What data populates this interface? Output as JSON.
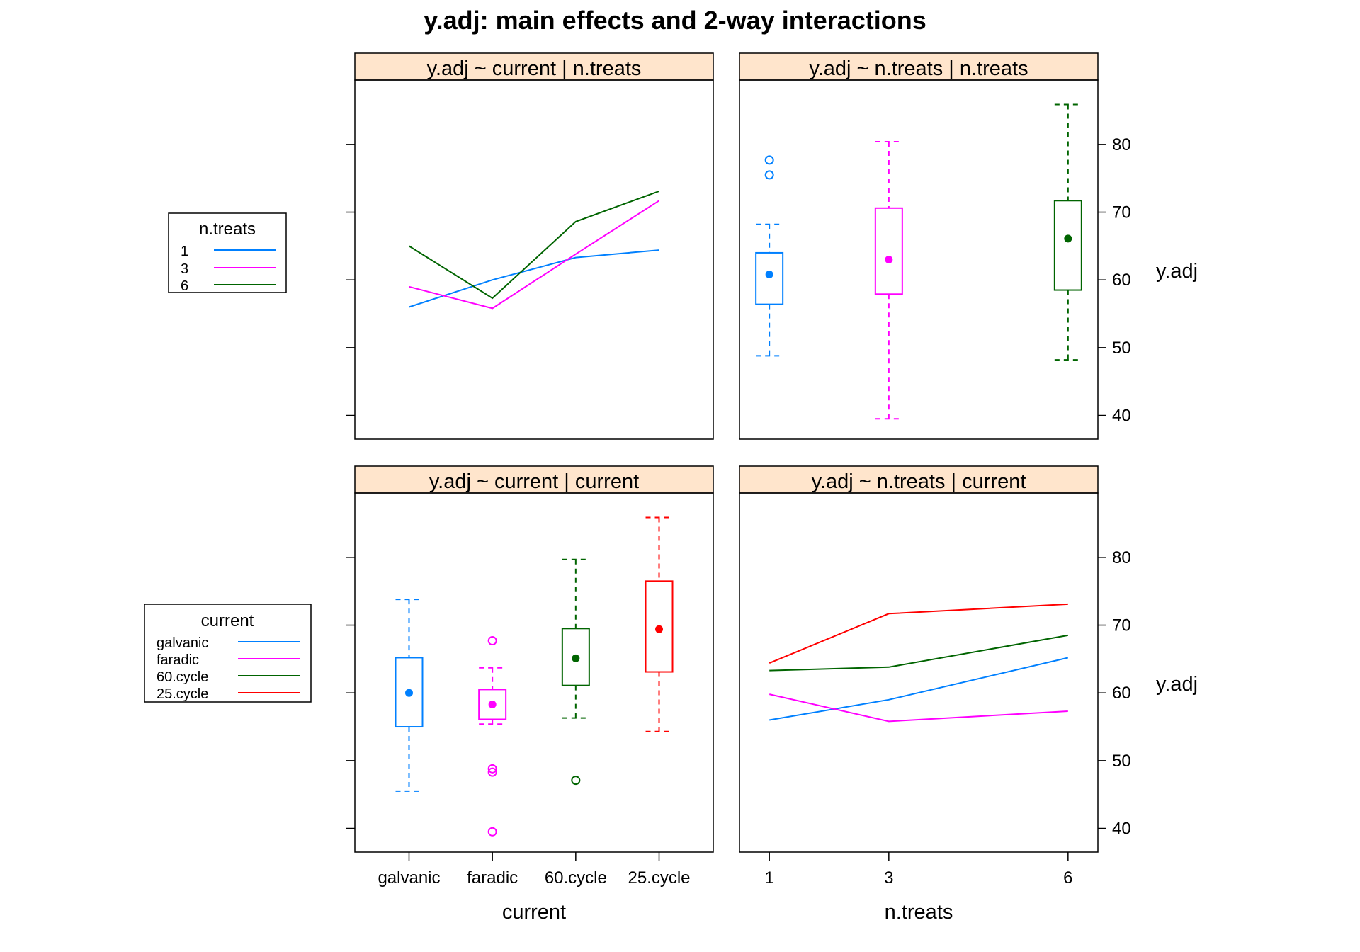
{
  "title": "y.adj: main effects and 2-way interactions",
  "colors": {
    "strip_bg": "#ffe5cc",
    "n_treats": {
      "1": "#0080ff",
      "3": "#ff00ff",
      "6": "#006400"
    },
    "current": {
      "galvanic": "#0080ff",
      "faradic": "#ff00ff",
      "60.cycle": "#006400",
      "25.cycle": "#ff0000"
    }
  },
  "axes": {
    "y_label": "y.adj",
    "y_ticks": [
      40,
      50,
      60,
      70,
      80
    ],
    "y_range": [
      36.5,
      89.5
    ],
    "x_current_label": "current",
    "x_current_levels": [
      "galvanic",
      "faradic",
      "60.cycle",
      "25.cycle"
    ],
    "x_ntreats_label": "n.treats",
    "x_ntreats_levels": [
      "1",
      "3",
      "6"
    ]
  },
  "legends": {
    "n_treats": {
      "title": "n.treats",
      "items": [
        "1",
        "3",
        "6"
      ]
    },
    "current": {
      "title": "current",
      "items": [
        "galvanic",
        "faradic",
        "60.cycle",
        "25.cycle"
      ]
    }
  },
  "chart_data": [
    {
      "type": "line",
      "strip": "y.adj ~ current | n.treats",
      "x": [
        "galvanic",
        "faradic",
        "60.cycle",
        "25.cycle"
      ],
      "series": [
        {
          "name": "1",
          "values": [
            56.0,
            60.0,
            63.3,
            64.4
          ]
        },
        {
          "name": "3",
          "values": [
            59.0,
            55.8,
            63.8,
            71.7
          ]
        },
        {
          "name": "6",
          "values": [
            65.0,
            57.3,
            68.6,
            73.1
          ]
        }
      ],
      "ylim": [
        36.5,
        89.5
      ]
    },
    {
      "type": "box",
      "strip": "y.adj ~ n.treats | n.treats",
      "x": [
        "1",
        "3",
        "6"
      ],
      "boxes": [
        {
          "name": "1",
          "whisker_low": 48.8,
          "q1": 56.4,
          "median": 60.8,
          "q3": 64.0,
          "whisker_high": 68.2,
          "outliers": [
            75.5,
            77.7
          ]
        },
        {
          "name": "3",
          "whisker_low": 39.5,
          "q1": 57.9,
          "median": 63.0,
          "q3": 70.6,
          "whisker_high": 80.4,
          "outliers": []
        },
        {
          "name": "6",
          "whisker_low": 48.2,
          "q1": 58.5,
          "median": 66.1,
          "q3": 71.7,
          "whisker_high": 85.9,
          "outliers": []
        }
      ],
      "ylim": [
        36.5,
        89.5
      ]
    },
    {
      "type": "box",
      "strip": "y.adj ~ current | current",
      "x": [
        "galvanic",
        "faradic",
        "60.cycle",
        "25.cycle"
      ],
      "boxes": [
        {
          "name": "galvanic",
          "whisker_low": 45.5,
          "q1": 55.0,
          "median": 60.0,
          "q3": 65.2,
          "whisker_high": 73.8,
          "outliers": []
        },
        {
          "name": "faradic",
          "whisker_low": 55.4,
          "q1": 56.1,
          "median": 58.3,
          "q3": 60.5,
          "whisker_high": 63.7,
          "outliers": [
            39.5,
            48.3,
            48.8,
            67.7
          ]
        },
        {
          "name": "60.cycle",
          "whisker_low": 56.3,
          "q1": 61.1,
          "median": 65.1,
          "q3": 69.5,
          "whisker_high": 79.7,
          "outliers": [
            47.1
          ]
        },
        {
          "name": "25.cycle",
          "whisker_low": 54.3,
          "q1": 63.1,
          "median": 69.4,
          "q3": 76.5,
          "whisker_high": 85.9,
          "outliers": []
        }
      ],
      "ylim": [
        36.5,
        89.5
      ]
    },
    {
      "type": "line",
      "strip": "y.adj ~ n.treats | current",
      "x": [
        "1",
        "3",
        "6"
      ],
      "series": [
        {
          "name": "galvanic",
          "values": [
            56.0,
            59.0,
            65.2
          ]
        },
        {
          "name": "faradic",
          "values": [
            59.8,
            55.8,
            57.3
          ]
        },
        {
          "name": "60.cycle",
          "values": [
            63.3,
            63.8,
            68.5
          ]
        },
        {
          "name": "25.cycle",
          "values": [
            64.4,
            71.7,
            73.1
          ]
        }
      ],
      "ylim": [
        36.5,
        89.5
      ]
    }
  ]
}
